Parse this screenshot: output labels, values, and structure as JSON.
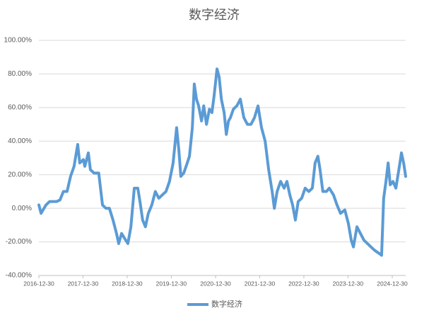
{
  "chart_data": {
    "type": "line",
    "title": "数字经济",
    "x": [
      "2016-12-30",
      "2017-01-17",
      "2017-02-27",
      "2017-03-28",
      "2017-05-25",
      "2017-06-23",
      "2017-07-21",
      "2017-08-20",
      "2017-09-18",
      "2017-10-17",
      "2017-11-16",
      "2017-12-03",
      "2018-01-02",
      "2018-01-14",
      "2018-02-12",
      "2018-03-01",
      "2018-03-30",
      "2018-05-09",
      "2018-06-09",
      "2018-07-07",
      "2018-08-05",
      "2018-09-04",
      "2018-10-03",
      "2018-10-21",
      "2018-11-14",
      "2018-12-18",
      "2019-01-05",
      "2019-01-30",
      "2019-02-27",
      "2019-03-28",
      "2019-04-15",
      "2019-05-07",
      "2019-05-30",
      "2019-06-23",
      "2019-07-22",
      "2019-08-20",
      "2019-09-18",
      "2019-10-17",
      "2019-11-16",
      "2019-12-15",
      "2020-01-14",
      "2020-02-12",
      "2020-03-01",
      "2020-03-18",
      "2020-04-11",
      "2020-05-10",
      "2020-05-28",
      "2020-06-21",
      "2020-07-07",
      "2020-07-25",
      "2020-08-12",
      "2020-09-05",
      "2020-09-23",
      "2020-10-16",
      "2020-11-09",
      "2020-11-30",
      "2020-12-18",
      "2021-01-11",
      "2021-01-29",
      "2021-02-16",
      "2021-03-11",
      "2021-03-29",
      "2021-04-16",
      "2021-05-02",
      "2021-05-26",
      "2021-06-24",
      "2021-07-23",
      "2021-08-21",
      "2021-09-19",
      "2021-10-19",
      "2021-11-17",
      "2021-12-16",
      "2022-01-14",
      "2022-02-13",
      "2022-03-14",
      "2022-04-12",
      "2022-04-30",
      "2022-05-23",
      "2022-06-21",
      "2022-07-20",
      "2022-08-12",
      "2022-09-05",
      "2022-09-28",
      "2022-10-21",
      "2022-11-13",
      "2022-12-12",
      "2023-01-10",
      "2023-02-09",
      "2023-03-10",
      "2023-04-02",
      "2023-04-25",
      "2023-05-13",
      "2023-06-05",
      "2023-07-05",
      "2023-07-28",
      "2023-09-01",
      "2023-09-30",
      "2023-10-29",
      "2023-12-04",
      "2024-01-02",
      "2024-01-26",
      "2024-02-13",
      "2024-03-13",
      "2024-04-11",
      "2024-05-10",
      "2024-06-08",
      "2024-07-07",
      "2024-08-06",
      "2024-09-15",
      "2024-10-03",
      "2024-10-20",
      "2024-11-08",
      "2024-11-26",
      "2024-12-13",
      "2025-01-05",
      "2025-01-29",
      "2025-02-27",
      "2025-03-16",
      "2025-04-03",
      "2025-04-20"
    ],
    "series": [
      {
        "name": "数字经济",
        "color": "#5b9bd5",
        "values": [
          2,
          -3,
          2,
          4,
          4,
          5,
          10,
          10,
          19,
          25,
          38,
          27,
          29,
          25,
          33,
          23,
          21,
          21,
          2,
          0,
          0,
          -7,
          -15,
          -21,
          -15,
          -19,
          -21,
          -11,
          12,
          12,
          4,
          -7,
          -11,
          -3,
          2,
          10,
          6,
          8,
          10,
          16,
          27,
          48,
          35,
          19,
          21,
          27,
          31,
          48,
          74,
          65,
          61,
          52,
          61,
          50,
          59,
          57,
          67,
          83,
          78,
          65,
          57,
          44,
          52,
          54,
          59,
          61,
          65,
          54,
          50,
          50,
          54,
          61,
          48,
          40,
          23,
          10,
          0,
          10,
          16,
          12,
          16,
          8,
          2,
          -7,
          4,
          6,
          12,
          10,
          12,
          27,
          31,
          23,
          10,
          10,
          12,
          8,
          2,
          -3,
          -1,
          -9,
          -19,
          -23,
          -11,
          -15,
          -19,
          -21,
          -23,
          -25,
          -27,
          -28,
          6,
          16,
          27,
          14,
          16,
          12,
          25,
          33,
          27,
          19
        ]
      }
    ],
    "xlim": [
      "2016-12-30",
      "2025-04-20"
    ],
    "xticks": [
      "2016-12-30",
      "2017-12-30",
      "2018-12-30",
      "2019-12-30",
      "2020-12-30",
      "2021-12-30",
      "2022-12-30",
      "2023-12-30",
      "2024-12-30"
    ],
    "ylim": [
      -40,
      100
    ],
    "yticks": [
      {
        "value": -40,
        "label": "-40.00%"
      },
      {
        "value": -20,
        "label": "-20.00%"
      },
      {
        "value": 0,
        "label": "0.00%"
      },
      {
        "value": 20,
        "label": "20.00%"
      },
      {
        "value": 40,
        "label": "40.00%"
      },
      {
        "value": 60,
        "label": "60.00%"
      },
      {
        "value": 80,
        "label": "80.00%"
      },
      {
        "value": 100,
        "label": "100.00%"
      }
    ],
    "grid": true,
    "legend": "bottom"
  }
}
